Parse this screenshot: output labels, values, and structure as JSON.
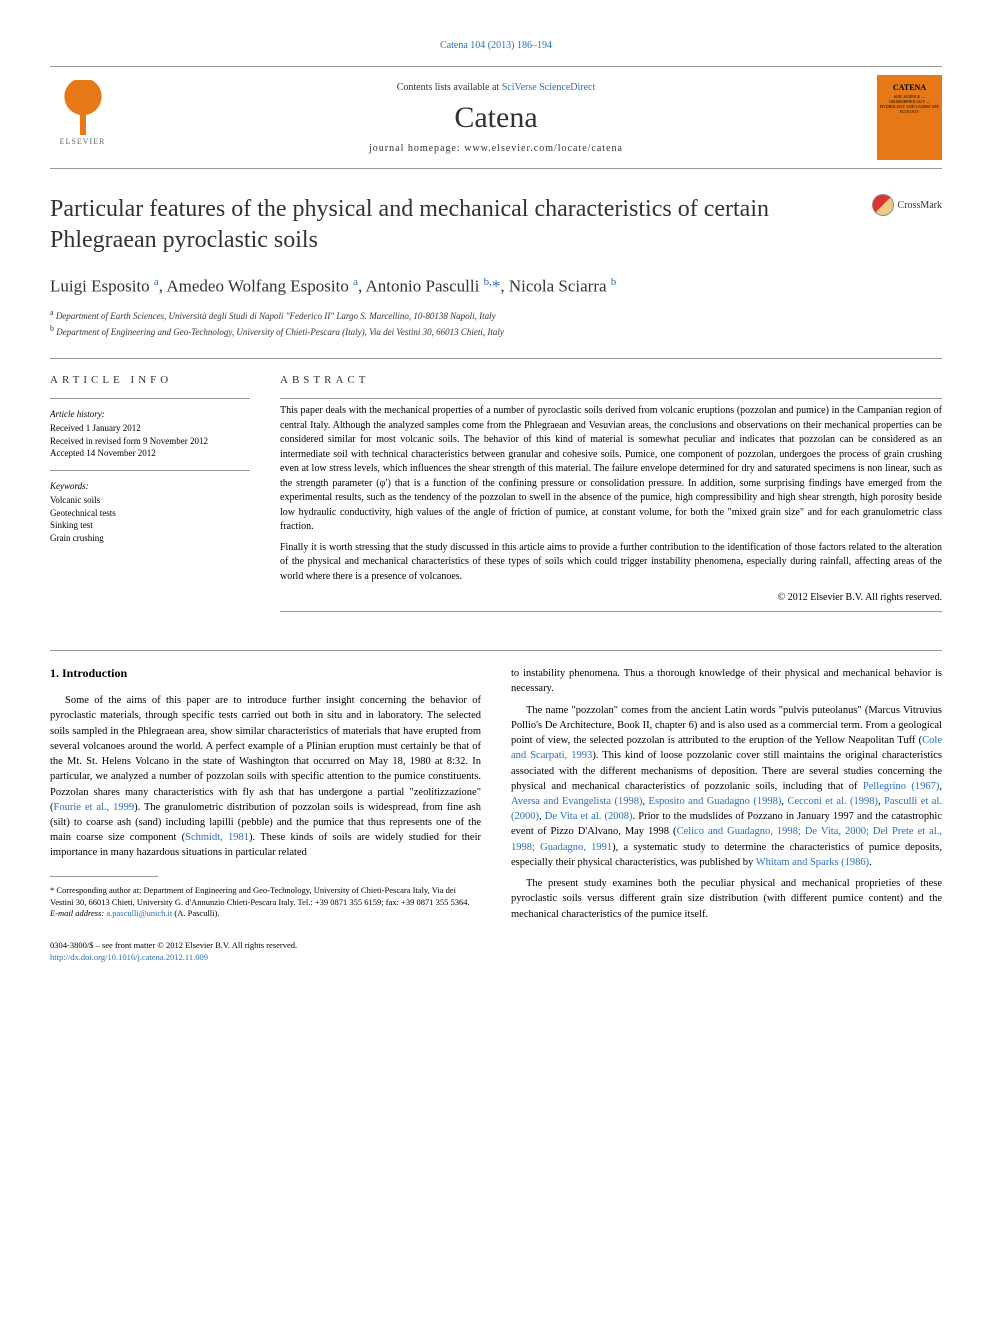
{
  "header": {
    "citation": "Catena 104 (2013) 186–194",
    "contents_text": "Contents lists available at",
    "sciverse": "SciVerse ScienceDirect",
    "journal_name": "Catena",
    "homepage_prefix": "journal homepage:",
    "homepage_url": "www.elsevier.com/locate/catena",
    "elsevier_label": "ELSEVIER",
    "cover_label": "CATENA",
    "cover_sub": "SOIL SCIENCE — GEOMORPHOLOGY — HYDROLOGY AND LANDSCAPE ECOLOGY"
  },
  "crossmark_label": "CrossMark",
  "title": "Particular features of the physical and mechanical characteristics of certain Phlegraean pyroclastic soils",
  "authors": [
    {
      "name": "Luigi Esposito",
      "sup": "a"
    },
    {
      "name": "Amedeo Wolfang Esposito",
      "sup": "a"
    },
    {
      "name": "Antonio Pasculli",
      "sup": "b,",
      "star": true
    },
    {
      "name": "Nicola Sciarra",
      "sup": "b"
    }
  ],
  "affiliations": [
    {
      "sup": "a",
      "text": "Department of Earth Sciences, Università degli Studi di Napoli \"Federico II\" Largo S. Marcellino, 10-80138 Napoli, Italy"
    },
    {
      "sup": "b",
      "text": "Department of Engineering and Geo-Technology, University of Chieti-Pescara (Italy), Via dei Vestini 30, 66013 Chieti, Italy"
    }
  ],
  "article_info": {
    "heading": "ARTICLE INFO",
    "history_label": "Article history:",
    "history": "Received 1 January 2012\nReceived in revised form 9 November 2012\nAccepted 14 November 2012",
    "keywords_label": "Keywords:",
    "keywords": "Volcanic soils\nGeotechnical tests\nSinking test\nGrain crushing"
  },
  "abstract": {
    "heading": "ABSTRACT",
    "para1": "This paper deals with the mechanical properties of a number of pyroclastic soils derived from volcanic eruptions (pozzolan and pumice) in the Campanian region of central Italy. Although the analyzed samples come from the Phlegraean and Vesuvian areas, the conclusions and observations on their mechanical properties can be considered similar for most volcanic soils. The behavior of this kind of material is somewhat peculiar and indicates that pozzolan can be considered as an intermediate soil with technical characteristics between granular and cohesive soils. Pumice, one component of pozzolan, undergoes the process of grain crushing even at low stress levels, which influences the shear strength of this material. The failure envelope determined for dry and saturated specimens is non linear, such as the strength parameter (φ′) that is a function of the confining pressure or consolidation pressure. In addition, some surprising findings have emerged from the experimental results, such as the tendency of the pozzolan to swell in the absence of the pumice, high compressibility and high shear strength, high porosity beside low hydraulic conductivity, high values of the angle of friction of pumice, at constant volume, for both the \"mixed grain size\" and for each granulometric class fraction.",
    "para2": "Finally it is worth stressing that the study discussed in this article aims to provide a further contribution to the identification of those factors related to the alteration of the physical and mechanical characteristics of these types of soils which could trigger instability phenomena, especially during rainfall, affecting areas of the world where there is a presence of volcanoes.",
    "copyright": "© 2012 Elsevier B.V. All rights reserved."
  },
  "section1": {
    "heading": "1. Introduction",
    "col1_p1_a": "Some of the aims of this paper are to introduce further insight concerning the behavior of pyroclastic materials, through specific tests carried out both in situ and in laboratory. The selected soils sampled in the Phlegraean area, show similar characteristics of materials that have erupted from several volcanoes around the world. A perfect example of a Plinian eruption must certainly be that of the Mt. St. Helens Volcano in the state of Washington that occurred on May 18, 1980 at 8:32. In particular, we analyzed a number of pozzolan soils with specific attention to the pumice constituents. Pozzolan shares many characteristics with fly ash that has undergone a partial \"zeolitizzazione\" (",
    "col1_ref1": "Fourie et al., 1999",
    "col1_p1_b": "). The granulometric distribution of pozzolan soils is widespread, from fine ash (silt) to coarse ash (sand) including lapilli (pebble) and the pumice that thus represents one of the main coarse size component (",
    "col1_ref2": "Schmidt, 1981",
    "col1_p1_c": "). These kinds of soils are widely studied for their importance in many hazardous situations in particular related",
    "col2_p1": "to instability phenomena. Thus a thorough knowledge of their physical and mechanical behavior is necessary.",
    "col2_p2_a": "The name \"pozzolan\" comes from the ancient Latin words \"pulvis puteolanus\" (Marcus Vitruvius Pollio's De Architecture, Book II, chapter 6) and is also used as a commercial term. From a geological point of view, the selected pozzolan is attributed to the eruption of the Yellow Neapolitan Tuff (",
    "col2_ref1": "Cole and Scarpati, 1993",
    "col2_p2_b": "). This kind of loose pozzolanic cover still maintains the original characteristics associated with the different mechanisms of deposition. There are several studies concerning the physical and mechanical characteristics of pozzolanic soils, including that of ",
    "col2_ref2": "Pellegrino (1967)",
    "col2_ref3": "Aversa and Evangelista (1998)",
    "col2_ref4": "Esposito and Guadagno (1998)",
    "col2_ref5": "Cecconi et al. (1998)",
    "col2_ref6": "Pasculli et al. (2000)",
    "col2_ref7": "De Vita et al. (2008)",
    "col2_p2_c": ". Prior to the mudslides of Pozzano in January 1997 and the catastrophic event of Pizzo D'Alvano, May 1998 (",
    "col2_ref8": "Celico and Guadagno, 1998; De Vita, 2000; Del Prete et al., 1998; Guadagno, 1991",
    "col2_p2_d": "), a systematic study to determine the characteristics of pumice deposits, especially their physical characteristics, was published by ",
    "col2_ref9": "Whitam and Sparks (1986)",
    "col2_p2_e": ".",
    "col2_p3": "The present study examines both the peculiar physical and mechanical proprieties of these pyroclastic soils versus different grain size distribution (with different pumice content) and the mechanical characteristics of the pumice itself."
  },
  "footnotes": {
    "corresponding_star": "*",
    "corresponding": "Corresponding author at: Department of Engineering and Geo-Technology, University of Chieti-Pescara Italy, Via dei Vestini 30, 66013 Chieti, University G. d'Annunzio Chieti-Pescara Italy. Tel.: +39 0871 355 6159; fax: +39 0871 355 5364.",
    "email_label": "E-mail address:",
    "email": "a.pasculli@unich.it",
    "email_person": "(A. Pasculli)."
  },
  "bottom": {
    "issn": "0304-3800/$ – see front matter © 2012 Elsevier B.V. All rights reserved.",
    "doi": "http://dx.doi.org/10.1016/j.catena.2012.11.009"
  }
}
